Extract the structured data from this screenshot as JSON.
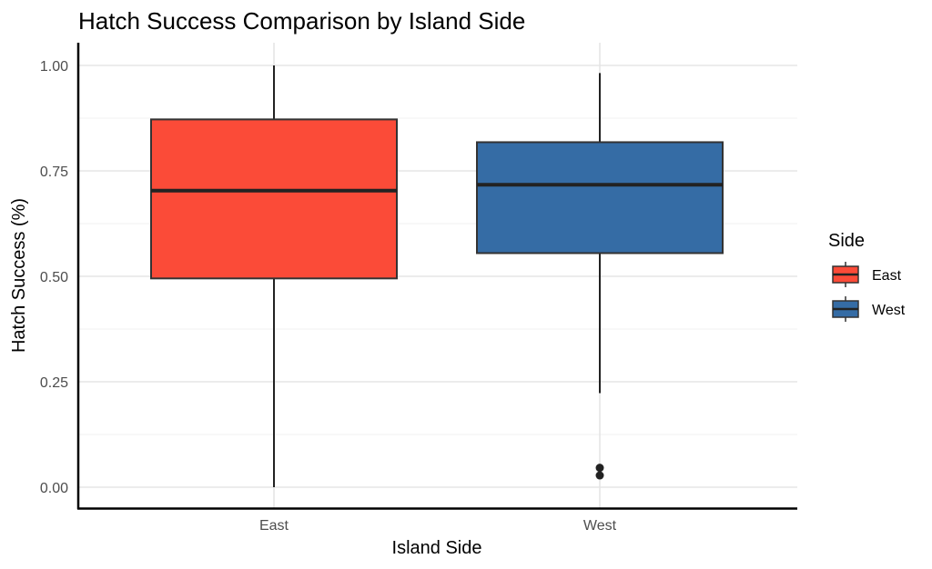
{
  "chart_data": {
    "type": "boxplot",
    "title": "Hatch Success Comparison by Island Side",
    "xlabel": "Island Side",
    "ylabel": "Hatch Success (%)",
    "ylim": [
      -0.05,
      1.05
    ],
    "yticks": [
      0.0,
      0.25,
      0.5,
      0.75,
      1.0
    ],
    "ytick_labels": [
      "0.00",
      "0.25",
      "0.50",
      "0.75",
      "1.00"
    ],
    "grid": true,
    "categories": [
      "East",
      "West"
    ],
    "series": [
      {
        "name": "East",
        "color": "#fb4b38",
        "whisker_low": 0.0,
        "q1": 0.495,
        "median": 0.703,
        "q3": 0.872,
        "whisker_high": 1.0,
        "outliers": []
      },
      {
        "name": "West",
        "color": "#356ca5",
        "whisker_low": 0.223,
        "q1": 0.555,
        "median": 0.717,
        "q3": 0.818,
        "whisker_high": 0.982,
        "outliers": [
          0.046,
          0.028
        ]
      }
    ],
    "legend": {
      "title": "Side",
      "placement": "right",
      "entries": [
        "East",
        "West"
      ]
    }
  }
}
